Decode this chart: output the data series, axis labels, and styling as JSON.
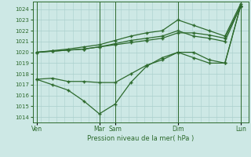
{
  "background_color": "#cde8e5",
  "grid_color": "#aacfcc",
  "line_color": "#2d6a2d",
  "title": "Pression niveau de la mer( hPa )",
  "ylim": [
    1013.5,
    1024.7
  ],
  "yticks": [
    1014,
    1015,
    1016,
    1017,
    1018,
    1019,
    1020,
    1021,
    1022,
    1023,
    1024
  ],
  "x_tick_labels": [
    "Ven",
    "Mar",
    "Sam",
    "Dim",
    "Lun"
  ],
  "x_tick_positions": [
    0,
    8,
    10,
    18,
    26
  ],
  "xlim": [
    -0.5,
    27
  ],
  "vline_positions": [
    0,
    8,
    10,
    18,
    26
  ],
  "series_top1_x": [
    0,
    2,
    4,
    6,
    8,
    10,
    12,
    14,
    16,
    18,
    20,
    22,
    24,
    26
  ],
  "series_top1_y": [
    1020.0,
    1020.1,
    1020.2,
    1020.3,
    1020.5,
    1020.7,
    1020.9,
    1021.1,
    1021.3,
    1021.8,
    1021.8,
    1021.6,
    1021.3,
    1024.3
  ],
  "series_top2_x": [
    0,
    2,
    4,
    6,
    8,
    10,
    12,
    14,
    16,
    18,
    20,
    22,
    24,
    26
  ],
  "series_top2_y": [
    1020.0,
    1020.1,
    1020.2,
    1020.3,
    1020.5,
    1020.8,
    1021.1,
    1021.3,
    1021.5,
    1022.0,
    1021.5,
    1021.3,
    1021.0,
    1024.3
  ],
  "series_top3_x": [
    0,
    2,
    4,
    6,
    8,
    10,
    12,
    14,
    16,
    18,
    20,
    22,
    24,
    26
  ],
  "series_top3_y": [
    1020.0,
    1020.15,
    1020.3,
    1020.5,
    1020.7,
    1021.1,
    1021.5,
    1021.8,
    1022.0,
    1023.0,
    1022.5,
    1022.0,
    1021.5,
    1024.5
  ],
  "series_mid_x": [
    0,
    2,
    4,
    6,
    8,
    10,
    12,
    14,
    16,
    18,
    20,
    22,
    24,
    26
  ],
  "series_mid_y": [
    1017.5,
    1017.6,
    1017.3,
    1017.3,
    1017.2,
    1017.2,
    1018.0,
    1018.8,
    1019.3,
    1020.0,
    1019.5,
    1019.0,
    1019.0,
    1024.3
  ],
  "series_low_x": [
    0,
    2,
    4,
    6,
    8,
    10,
    12,
    14,
    16,
    18,
    20,
    22,
    24,
    26
  ],
  "series_low_y": [
    1017.5,
    1017.0,
    1016.5,
    1015.5,
    1014.3,
    1015.2,
    1017.2,
    1018.7,
    1019.5,
    1020.0,
    1020.0,
    1019.3,
    1019.0,
    1024.3
  ],
  "marker_size": 3.5,
  "linewidth": 0.9
}
